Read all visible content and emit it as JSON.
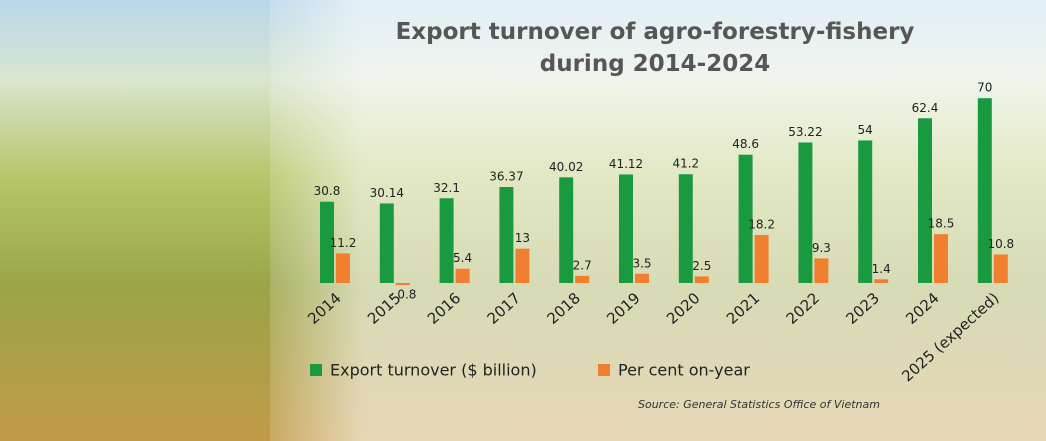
{
  "chart_data": {
    "type": "bar",
    "title": "Export turnover of agro-forestry-fishery during 2014-2024",
    "categories": [
      "2014",
      "2015",
      "2016",
      "2017",
      "2018",
      "2019",
      "2020",
      "2021",
      "2022",
      "2023",
      "2024",
      "2025 (expected)"
    ],
    "series": [
      {
        "name": "Export turnover ($ billion)",
        "color": "#1a9a3f",
        "values": [
          30.8,
          30.14,
          32.1,
          36.37,
          40.02,
          41.12,
          41.2,
          48.6,
          53.22,
          54,
          62.4,
          70
        ]
      },
      {
        "name": "Per cent on-year",
        "color": "#f08030",
        "values": [
          11.2,
          -0.8,
          5.4,
          13,
          2.7,
          3.5,
          2.5,
          18.2,
          9.3,
          1.4,
          18.5,
          10.8
        ],
        "value_labels": [
          "11.2",
          "- 0.8",
          "5.4",
          "13",
          "2.7",
          "3.5",
          "2.5",
          "18.2",
          "9.3",
          "1.4",
          "18.5",
          "10.8"
        ]
      }
    ],
    "source": "Source: General Statistics Office of Vietnam"
  }
}
